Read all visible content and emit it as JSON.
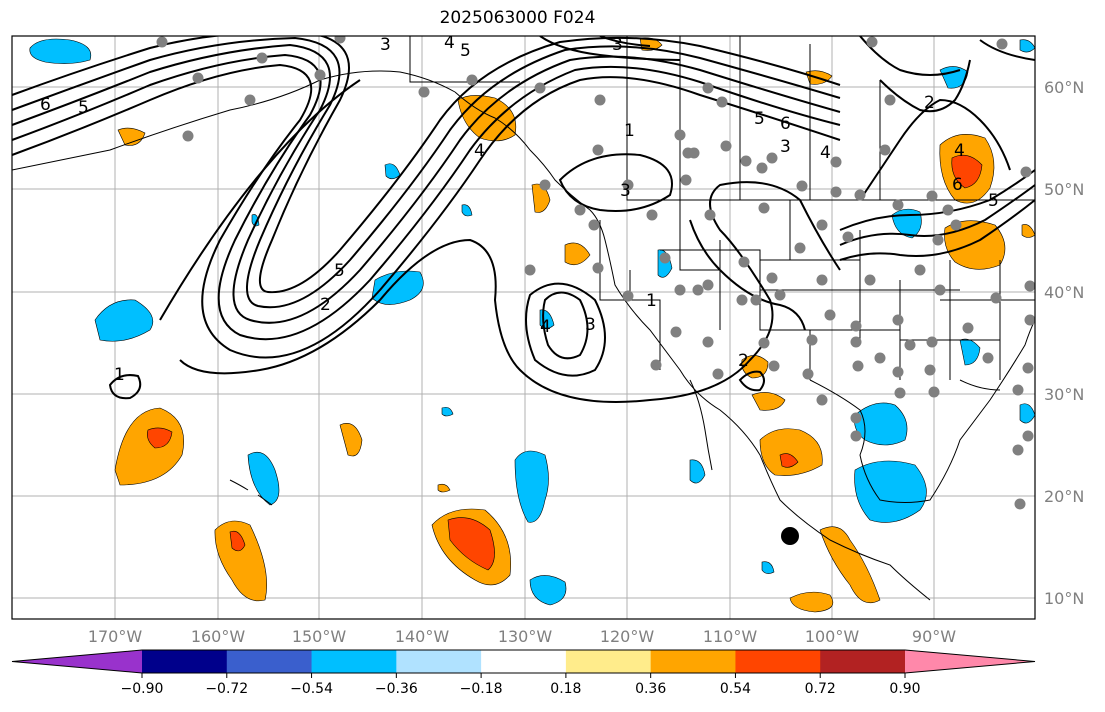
{
  "title": "2025063000 F024",
  "lat_labels": [
    "60°N",
    "50°N",
    "40°N",
    "30°N",
    "20°N",
    "10°N"
  ],
  "lon_labels": [
    "170°W",
    "160°W",
    "150°W",
    "140°W",
    "130°W",
    "120°W",
    "110°W",
    "100°W",
    "90°W"
  ],
  "colorbar": {
    "ticks": [
      "−0.90",
      "−0.72",
      "−0.54",
      "−0.36",
      "−0.18",
      "0.18",
      "0.36",
      "0.54",
      "0.72",
      "0.90"
    ],
    "colors": [
      "#9932cc",
      "#00008b",
      "#3a5fcd",
      "#00bfff",
      "#b0e2ff",
      "#ffffff",
      "#ffec8b",
      "#ffa500",
      "#ff4500",
      "#b22222",
      "#ff88aa"
    ]
  },
  "contour_labels": [
    {
      "text": "6"
    },
    {
      "text": "5"
    },
    {
      "text": "3"
    },
    {
      "text": "4"
    },
    {
      "text": "5"
    },
    {
      "text": "3"
    },
    {
      "text": "1"
    },
    {
      "text": "5"
    },
    {
      "text": "6"
    },
    {
      "text": "3"
    },
    {
      "text": "4"
    },
    {
      "text": "2"
    },
    {
      "text": "4"
    },
    {
      "text": "6"
    },
    {
      "text": "5"
    },
    {
      "text": "3"
    },
    {
      "text": "5"
    },
    {
      "text": "2"
    },
    {
      "text": "4"
    },
    {
      "text": "3"
    },
    {
      "text": "1"
    },
    {
      "text": "2"
    },
    {
      "text": "1"
    },
    {
      "text": "4"
    }
  ]
}
